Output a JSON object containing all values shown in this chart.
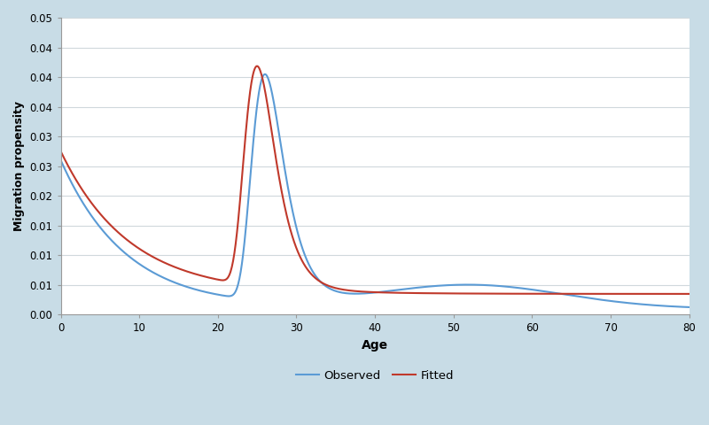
{
  "background_color": "#c8dce6",
  "plot_bg_color": "#ffffff",
  "observed_color": "#5b9bd5",
  "fitted_color": "#c0392b",
  "observed_linewidth": 1.5,
  "fitted_linewidth": 1.5,
  "xlabel": "Age",
  "ylabel": "Migration propensity",
  "ylim": [
    0.0,
    0.05
  ],
  "xlim": [
    0,
    80
  ],
  "ytick_step": 0.005,
  "xticks": [
    0,
    10,
    20,
    30,
    40,
    50,
    60,
    70,
    80
  ],
  "legend_labels": [
    "Observed",
    "Fitted"
  ],
  "grid_color": "#d0d8dc",
  "grid_linewidth": 0.8
}
